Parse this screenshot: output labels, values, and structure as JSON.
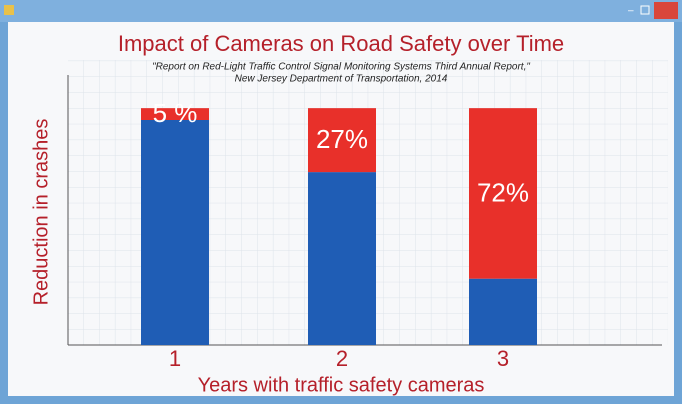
{
  "chart_data": {
    "type": "stacked_bar",
    "title": "Impact of Cameras on Road Safety over Time",
    "subtitle": [
      "\"Report on Red-Light Traffic Control Signal Monitoring Systems Third Annual Report,\"",
      "New Jersey Department of Transportation, 2014"
    ],
    "y_label": "Reduction in crashes",
    "x_label": "Years with traffic safety cameras",
    "categories": [
      "1",
      "2",
      "3"
    ],
    "series": [
      {
        "color": "#1f5db5",
        "values": [
          95,
          73,
          28
        ]
      },
      {
        "color": "#e8302a",
        "values": [
          5,
          27,
          72
        ],
        "value_labels": [
          "5 %",
          "27%",
          "72%"
        ]
      }
    ],
    "ylim": [
      0,
      114
    ]
  }
}
